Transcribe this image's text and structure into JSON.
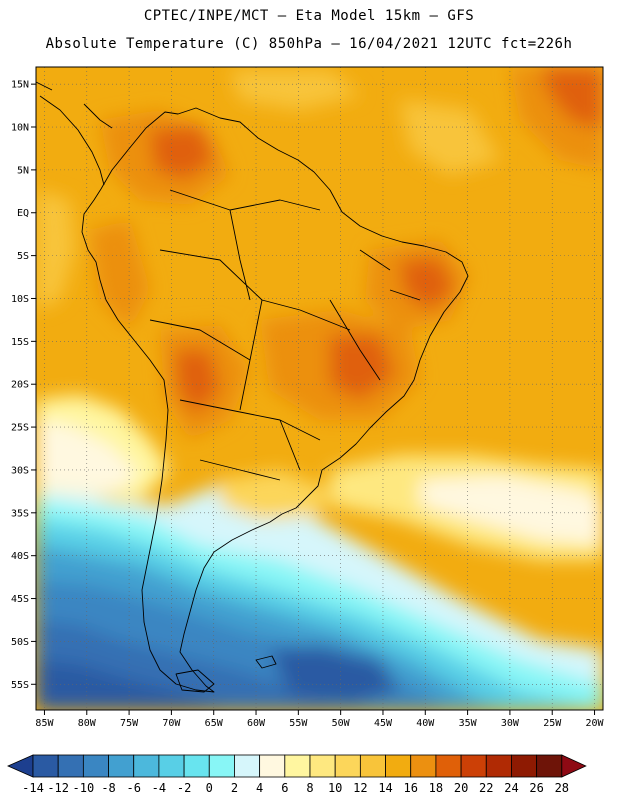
{
  "header": {
    "line1": "CPTEC/INPE/MCT –  Eta Model 15km – GFS",
    "line2": "Absolute Temperature (C) 850hPa – 16/04/2021 12UTC fct=226h"
  },
  "map": {
    "lon_range": [
      -86,
      -19
    ],
    "lat_range": [
      -58,
      17
    ],
    "lon_ticks": [
      -85,
      -80,
      -75,
      -70,
      -65,
      -60,
      -55,
      -50,
      -45,
      -40,
      -35,
      -30,
      -25,
      -20
    ],
    "lat_ticks": [
      15,
      10,
      5,
      0,
      -5,
      -10,
      -15,
      -20,
      -25,
      -30,
      -35,
      -40,
      -45,
      -50,
      -55
    ],
    "lon_tick_labels": [
      "85W",
      "80W",
      "75W",
      "70W",
      "65W",
      "60W",
      "55W",
      "50W",
      "45W",
      "40W",
      "35W",
      "30W",
      "25W",
      "20W"
    ],
    "lat_tick_labels": [
      "15N",
      "10N",
      "5N",
      "EQ",
      "5S",
      "10S",
      "15S",
      "20S",
      "25S",
      "30S",
      "35S",
      "40S",
      "45S",
      "50S",
      "55S"
    ]
  },
  "colorbar": {
    "colors": [
      "#1d3f8f",
      "#2a5aa3",
      "#3470b3",
      "#3a86c2",
      "#42a0d0",
      "#4cb8dc",
      "#58cfe6",
      "#68e4ef",
      "#88f6f6",
      "#d6f6fb",
      "#fff8e0",
      "#fff6a0",
      "#fee880",
      "#fcd65a",
      "#f8c43a",
      "#f2ac10",
      "#ec9010",
      "#e06008",
      "#cc4006",
      "#b02a04",
      "#8e1a02",
      "#6e1408"
    ],
    "labels": [
      "-14",
      "-12",
      "-10",
      "-8",
      "-6",
      "-4",
      "-2",
      "0",
      "2",
      "4",
      "6",
      "8",
      "10",
      "12",
      "14",
      "16",
      "18",
      "20",
      "22",
      "24",
      "26",
      "28"
    ]
  }
}
